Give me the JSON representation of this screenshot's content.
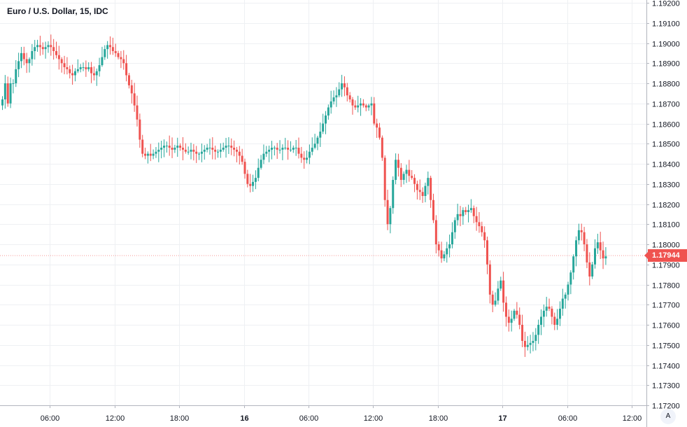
{
  "chart_data": {
    "type": "candlestick",
    "title": "Euro / U.S. Dollar, 15, IDC",
    "ylim": [
      1.172,
      1.192
    ],
    "y_ticks": [
      "1.17200",
      "1.17300",
      "1.17400",
      "1.17500",
      "1.17600",
      "1.17700",
      "1.17800",
      "1.17900",
      "1.18000",
      "1.18100",
      "1.18200",
      "1.18300",
      "1.18400",
      "1.18500",
      "1.18600",
      "1.18700",
      "1.18800",
      "1.18900",
      "1.19000",
      "1.19100",
      "1.19200"
    ],
    "x_ticks": [
      {
        "label": "06:00",
        "bar": 18
      },
      {
        "label": "12:00",
        "bar": 42
      },
      {
        "label": "18:00",
        "bar": 66
      },
      {
        "label": "16",
        "bar": 90
      },
      {
        "label": "06:00",
        "bar": 114
      },
      {
        "label": "12:00",
        "bar": 138
      },
      {
        "label": "18:00",
        "bar": 162
      },
      {
        "label": "17",
        "bar": 186
      },
      {
        "label": "06:00",
        "bar": 210
      },
      {
        "label": "12:00",
        "bar": 234
      }
    ],
    "last_price": "1.17944",
    "grid": true,
    "up_color": "#26a69a",
    "down_color": "#ef5350",
    "series": [
      {
        "name": "",
        "values": [
          1.1872,
          1.188,
          1.187,
          1.188,
          1.188,
          1.1887,
          1.1891,
          1.1895,
          1.1892,
          1.189,
          1.1892,
          1.1896,
          1.1898,
          1.1899,
          1.1898,
          1.1897,
          1.1898,
          1.1899,
          1.1898,
          1.1896,
          1.1894,
          1.1892,
          1.189,
          1.1888,
          1.1887,
          1.1885,
          1.1884,
          1.1886,
          1.1887,
          1.1888,
          1.1888,
          1.1887,
          1.1888,
          1.1885,
          1.1884,
          1.1886,
          1.1889,
          1.1893,
          1.1897,
          1.1899,
          1.1898,
          1.1896,
          1.1895,
          1.1893,
          1.1892,
          1.189,
          1.1884,
          1.1879,
          1.1875,
          1.1869,
          1.1862,
          1.1852,
          1.1845,
          1.1844,
          1.1845,
          1.1844,
          1.1845,
          1.1846,
          1.1847,
          1.1848,
          1.1849,
          1.1849,
          1.1848,
          1.1847,
          1.1848,
          1.1849,
          1.1848,
          1.1847,
          1.1846,
          1.1846,
          1.1847,
          1.1846,
          1.1845,
          1.1845,
          1.1846,
          1.1847,
          1.1848,
          1.1848,
          1.1847,
          1.1846,
          1.1846,
          1.1847,
          1.1848,
          1.1849,
          1.1849,
          1.1848,
          1.1847,
          1.1846,
          1.1844,
          1.1841,
          1.1835,
          1.183,
          1.1829,
          1.1831,
          1.1833,
          1.1838,
          1.1842,
          1.1845,
          1.1846,
          1.1847,
          1.1848,
          1.1848,
          1.1847,
          1.1847,
          1.1848,
          1.1848,
          1.1847,
          1.1847,
          1.1848,
          1.1848,
          1.1845,
          1.1843,
          1.1842,
          1.1843,
          1.1846,
          1.1848,
          1.185,
          1.1853,
          1.1856,
          1.186,
          1.1864,
          1.1868,
          1.1871,
          1.1873,
          1.1874,
          1.1877,
          1.188,
          1.1878,
          1.1874,
          1.1872,
          1.1869,
          1.1868,
          1.1869,
          1.187,
          1.1869,
          1.1868,
          1.1869,
          1.187,
          1.186,
          1.1858,
          1.1853,
          1.1843,
          1.1822,
          1.181,
          1.1818,
          1.1832,
          1.1842,
          1.1838,
          1.1832,
          1.1835,
          1.1837,
          1.1834,
          1.1833,
          1.183,
          1.1827,
          1.1826,
          1.1824,
          1.1829,
          1.1833,
          1.1822,
          1.1812,
          1.18,
          1.1797,
          1.1793,
          1.1795,
          1.1798,
          1.18,
          1.1806,
          1.1812,
          1.1815,
          1.1814,
          1.1817,
          1.1816,
          1.1817,
          1.1818,
          1.1814,
          1.1811,
          1.1809,
          1.1806,
          1.1802,
          1.179,
          1.1775,
          1.177,
          1.1772,
          1.1778,
          1.1782,
          1.1771,
          1.1764,
          1.1761,
          1.1763,
          1.1767,
          1.1765,
          1.176,
          1.1752,
          1.1749,
          1.175,
          1.1751,
          1.1752,
          1.1755,
          1.176,
          1.1764,
          1.1767,
          1.1769,
          1.1768,
          1.1764,
          1.176,
          1.1763,
          1.1768,
          1.1773,
          1.1775,
          1.178,
          1.1786,
          1.1794,
          1.1802,
          1.1807,
          1.1806,
          1.18,
          1.1791,
          1.1784,
          1.179,
          1.1798,
          1.1801,
          1.1797,
          1.1793,
          1.1794
        ]
      }
    ]
  },
  "axis": {
    "auto_label": "A"
  }
}
